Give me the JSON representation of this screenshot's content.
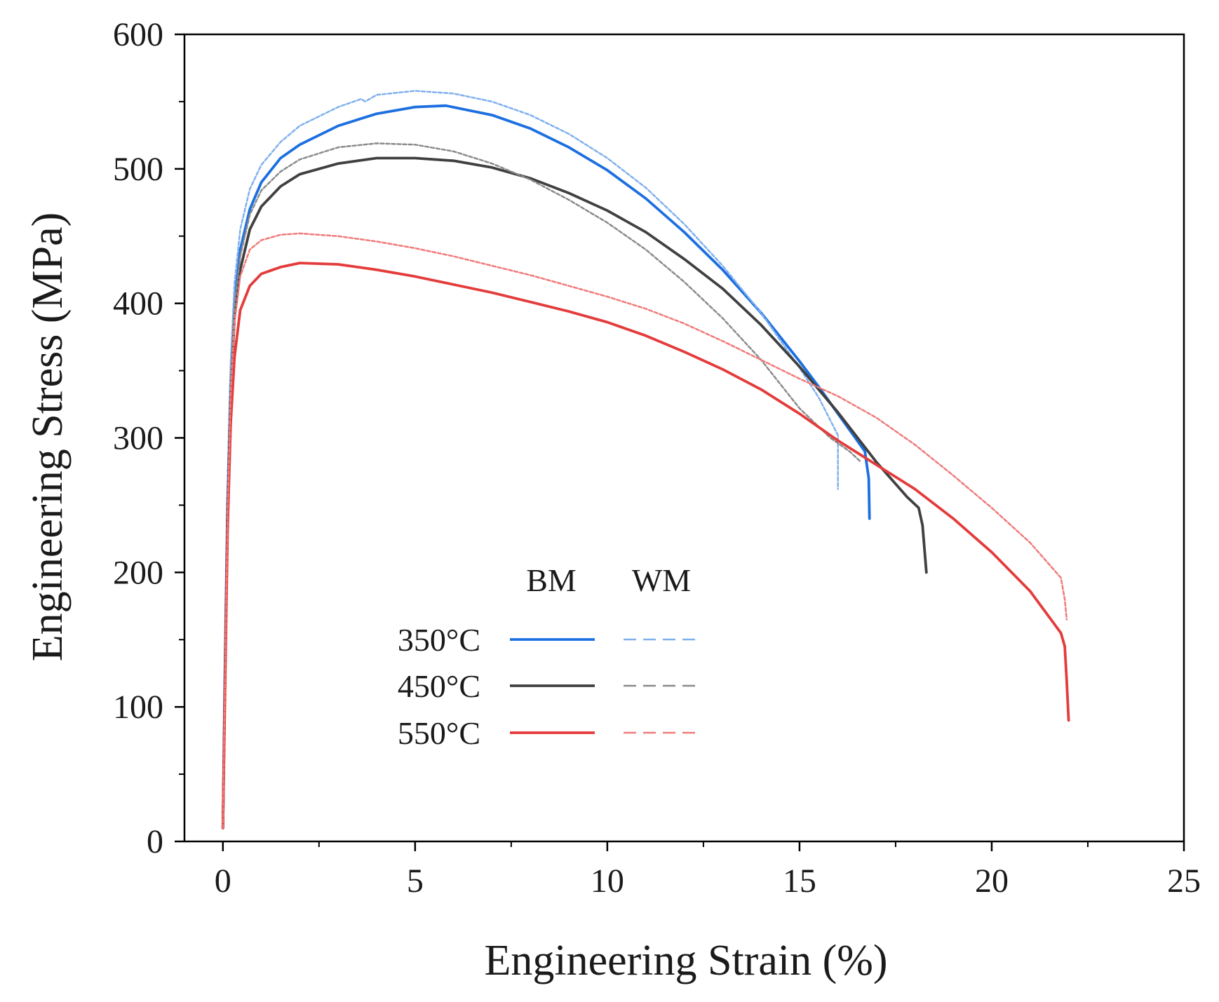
{
  "chart_data": {
    "type": "line",
    "title": "",
    "xlabel": "Engineering Strain (%)",
    "ylabel": "Engineering Stress (MPa)",
    "xlim": [
      -1,
      25
    ],
    "ylim": [
      0,
      600
    ],
    "xticks": [
      0,
      5,
      10,
      15,
      20,
      25
    ],
    "yticks": [
      0,
      100,
      200,
      300,
      400,
      500,
      600
    ],
    "grid": false,
    "legend": {
      "placement": "center-left",
      "column_headers": [
        "BM",
        "WM"
      ],
      "rows": [
        "350°C",
        "450°C",
        "550°C"
      ]
    },
    "series": [
      {
        "name": "350°C BM",
        "group": "BM",
        "temperature": "350°C",
        "color": "#1c6fe0",
        "style": "solid",
        "points": [
          [
            0.0,
            10
          ],
          [
            0.05,
            120
          ],
          [
            0.12,
            250
          ],
          [
            0.2,
            340
          ],
          [
            0.3,
            400
          ],
          [
            0.45,
            440
          ],
          [
            0.7,
            470
          ],
          [
            1,
            490
          ],
          [
            1.5,
            508
          ],
          [
            2,
            518
          ],
          [
            3,
            532
          ],
          [
            4,
            541
          ],
          [
            5,
            546
          ],
          [
            5.8,
            547
          ],
          [
            7,
            540
          ],
          [
            8,
            530
          ],
          [
            9,
            516
          ],
          [
            10,
            499
          ],
          [
            11,
            478
          ],
          [
            12,
            453
          ],
          [
            13,
            425
          ],
          [
            14,
            393
          ],
          [
            15,
            357
          ],
          [
            15.5,
            338
          ],
          [
            16,
            318
          ],
          [
            16.4,
            302
          ],
          [
            16.7,
            290
          ],
          [
            16.8,
            270
          ],
          [
            16.82,
            240
          ]
        ]
      },
      {
        "name": "350°C WM",
        "group": "WM",
        "temperature": "350°C",
        "color": "#7fb0ee",
        "style": "dashed",
        "points": [
          [
            0.0,
            10
          ],
          [
            0.05,
            130
          ],
          [
            0.12,
            260
          ],
          [
            0.2,
            355
          ],
          [
            0.3,
            415
          ],
          [
            0.45,
            455
          ],
          [
            0.7,
            485
          ],
          [
            1,
            503
          ],
          [
            1.5,
            520
          ],
          [
            2,
            532
          ],
          [
            3,
            546
          ],
          [
            3.6,
            552
          ],
          [
            3.7,
            550
          ],
          [
            4,
            555
          ],
          [
            5,
            558
          ],
          [
            6,
            556
          ],
          [
            7,
            550
          ],
          [
            8,
            540
          ],
          [
            9,
            526
          ],
          [
            10,
            508
          ],
          [
            11,
            486
          ],
          [
            12,
            459
          ],
          [
            13,
            428
          ],
          [
            14,
            393
          ],
          [
            15,
            352
          ],
          [
            15.5,
            330
          ],
          [
            16.0,
            302
          ],
          [
            16.0,
            262
          ]
        ]
      },
      {
        "name": "450°C BM",
        "group": "BM",
        "temperature": "450°C",
        "color": "#404040",
        "style": "solid",
        "points": [
          [
            0.0,
            10
          ],
          [
            0.05,
            110
          ],
          [
            0.12,
            240
          ],
          [
            0.2,
            330
          ],
          [
            0.3,
            390
          ],
          [
            0.45,
            425
          ],
          [
            0.7,
            455
          ],
          [
            1,
            472
          ],
          [
            1.5,
            487
          ],
          [
            2,
            496
          ],
          [
            3,
            504
          ],
          [
            4,
            508
          ],
          [
            5,
            508
          ],
          [
            6,
            506
          ],
          [
            7,
            501
          ],
          [
            8,
            493
          ],
          [
            9,
            482
          ],
          [
            10,
            469
          ],
          [
            11,
            453
          ],
          [
            12,
            433
          ],
          [
            13,
            411
          ],
          [
            14,
            384
          ],
          [
            15,
            353
          ],
          [
            16,
            319
          ],
          [
            17,
            282
          ],
          [
            17.8,
            256
          ],
          [
            18.1,
            248
          ],
          [
            18.2,
            235
          ],
          [
            18.3,
            200
          ]
        ]
      },
      {
        "name": "450°C WM",
        "group": "WM",
        "temperature": "450°C",
        "color": "#8a8a8a",
        "style": "dashed",
        "points": [
          [
            0.0,
            10
          ],
          [
            0.05,
            115
          ],
          [
            0.12,
            245
          ],
          [
            0.2,
            338
          ],
          [
            0.3,
            398
          ],
          [
            0.45,
            435
          ],
          [
            0.7,
            466
          ],
          [
            1,
            484
          ],
          [
            1.5,
            498
          ],
          [
            2,
            507
          ],
          [
            3,
            516
          ],
          [
            4,
            519
          ],
          [
            5,
            518
          ],
          [
            6,
            513
          ],
          [
            7,
            504
          ],
          [
            8,
            492
          ],
          [
            9,
            477
          ],
          [
            10,
            460
          ],
          [
            11,
            440
          ],
          [
            12,
            416
          ],
          [
            13,
            389
          ],
          [
            14,
            358
          ],
          [
            15,
            322
          ],
          [
            15.8,
            300
          ],
          [
            16.3,
            290
          ],
          [
            16.6,
            282
          ]
        ]
      },
      {
        "name": "550°C BM",
        "group": "BM",
        "temperature": "550°C",
        "color": "#e43b3b",
        "style": "solid",
        "points": [
          [
            0.0,
            10
          ],
          [
            0.05,
            100
          ],
          [
            0.12,
            230
          ],
          [
            0.2,
            310
          ],
          [
            0.3,
            360
          ],
          [
            0.45,
            395
          ],
          [
            0.7,
            413
          ],
          [
            1,
            422
          ],
          [
            1.5,
            427
          ],
          [
            2,
            430
          ],
          [
            3,
            429
          ],
          [
            4,
            425
          ],
          [
            5,
            420
          ],
          [
            6,
            414
          ],
          [
            7,
            408
          ],
          [
            8,
            401
          ],
          [
            9,
            394
          ],
          [
            10,
            386
          ],
          [
            11,
            376
          ],
          [
            12,
            364
          ],
          [
            13,
            351
          ],
          [
            14,
            336
          ],
          [
            15,
            318
          ],
          [
            16,
            298
          ],
          [
            17,
            280
          ],
          [
            18,
            262
          ],
          [
            19,
            240
          ],
          [
            20,
            215
          ],
          [
            21,
            186
          ],
          [
            21.8,
            155
          ],
          [
            21.9,
            145
          ],
          [
            21.95,
            120
          ],
          [
            22.0,
            90
          ]
        ]
      },
      {
        "name": "550°C WM",
        "group": "WM",
        "temperature": "550°C",
        "color": "#f07a7a",
        "style": "dashed",
        "points": [
          [
            0.0,
            10
          ],
          [
            0.05,
            110
          ],
          [
            0.12,
            240
          ],
          [
            0.2,
            330
          ],
          [
            0.3,
            385
          ],
          [
            0.45,
            420
          ],
          [
            0.7,
            440
          ],
          [
            1,
            447
          ],
          [
            1.5,
            451
          ],
          [
            2,
            452
          ],
          [
            3,
            450
          ],
          [
            4,
            446
          ],
          [
            5,
            441
          ],
          [
            6,
            435
          ],
          [
            7,
            428
          ],
          [
            8,
            421
          ],
          [
            9,
            413
          ],
          [
            10,
            405
          ],
          [
            11,
            396
          ],
          [
            12,
            385
          ],
          [
            13,
            372
          ],
          [
            14,
            358
          ],
          [
            15,
            344
          ],
          [
            16,
            331
          ],
          [
            17,
            315
          ],
          [
            18,
            295
          ],
          [
            19,
            272
          ],
          [
            20,
            248
          ],
          [
            21,
            222
          ],
          [
            21.8,
            196
          ],
          [
            21.9,
            180
          ],
          [
            21.95,
            165
          ]
        ]
      }
    ]
  }
}
